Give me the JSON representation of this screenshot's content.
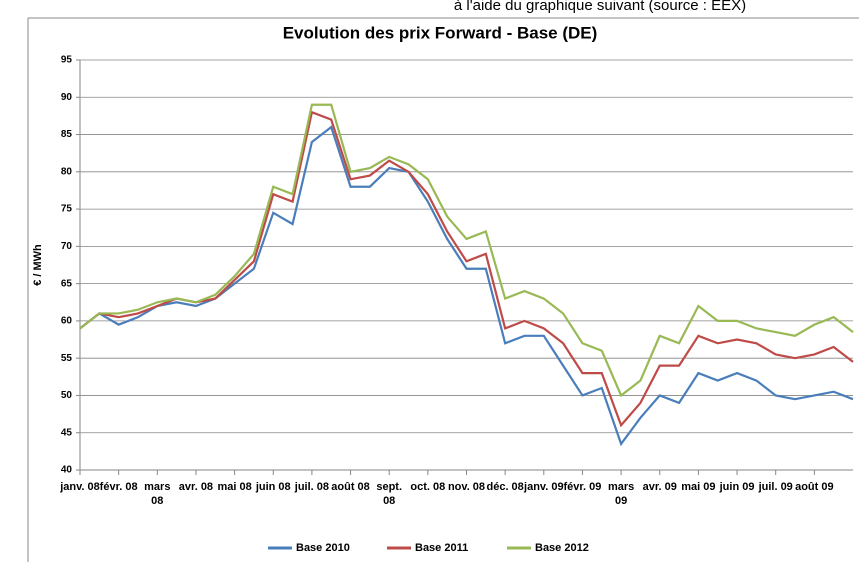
{
  "header_text": "à l'aide du graphique suivant (source : EEX)",
  "chart_data": {
    "type": "line",
    "title": "Evolution des prix Forward - Base (DE)",
    "ylabel": "€ / MWh",
    "categories": [
      "janv. 08",
      null,
      "févr. 08",
      null,
      "mars 08",
      null,
      "avr. 08",
      null,
      "mai 08",
      null,
      "juin 08",
      null,
      "juil. 08",
      null,
      "août 08",
      null,
      "sept. 08",
      null,
      "oct. 08",
      null,
      "nov. 08",
      null,
      "déc. 08",
      null,
      "janv. 09",
      null,
      "févr. 09",
      null,
      "mars 09",
      null,
      "avr. 09",
      null,
      "mai 09",
      null,
      "juin 09",
      null,
      "juil. 09",
      null,
      "août 09",
      null,
      null
    ],
    "series": [
      {
        "name": "Base 2010",
        "color": "#4a7ebb",
        "values": [
          59,
          61,
          59.5,
          60.5,
          62,
          62.5,
          62,
          63,
          65,
          67,
          74.5,
          73,
          84,
          86,
          78,
          78,
          80.5,
          80,
          76,
          71,
          67,
          67,
          57,
          58,
          58,
          54,
          50,
          51,
          43.5,
          47,
          50,
          49,
          53,
          52,
          53,
          52,
          50,
          49.5,
          50,
          50.5,
          49.5
        ]
      },
      {
        "name": "Base 2011",
        "color": "#be4b48",
        "values": [
          59,
          61,
          60.5,
          61,
          62,
          63,
          62.5,
          63,
          65.5,
          68,
          77,
          76,
          88,
          87,
          79,
          79.5,
          81.5,
          80,
          77,
          72,
          68,
          69,
          59,
          60,
          59,
          57,
          53,
          53,
          46,
          49,
          54,
          54,
          58,
          57,
          57.5,
          57,
          55.5,
          55,
          55.5,
          56.5,
          54.5
        ]
      },
      {
        "name": "Base 2012",
        "color": "#98b954",
        "values": [
          59,
          61,
          61,
          61.5,
          62.5,
          63,
          62.5,
          63.5,
          66,
          69,
          78,
          77,
          89,
          89,
          80,
          80.5,
          82,
          81,
          79,
          74,
          71,
          72,
          63,
          64,
          63,
          61,
          57,
          56,
          50,
          52,
          58,
          57,
          62,
          60,
          60,
          59,
          58.5,
          58,
          59.5,
          60.5,
          58.5
        ]
      }
    ],
    "ylim": [
      40,
      95
    ],
    "yticks": [
      40,
      45,
      50,
      55,
      60,
      65,
      70,
      75,
      80,
      85,
      90,
      95
    ],
    "grid": true,
    "legend": "bottom"
  }
}
